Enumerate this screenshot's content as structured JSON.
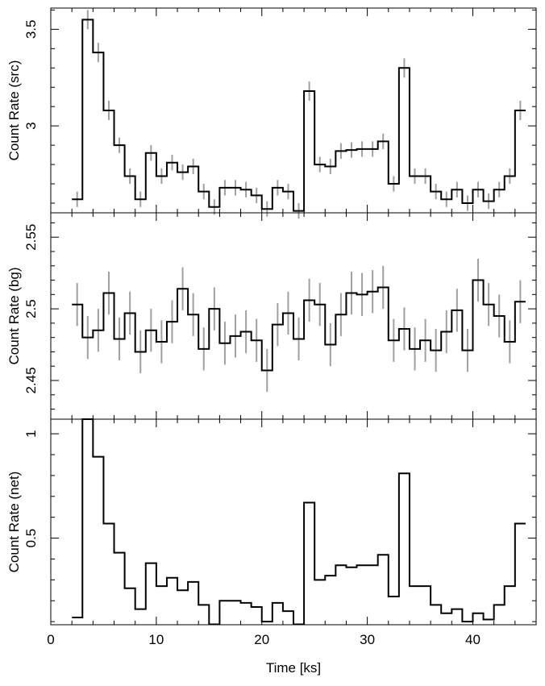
{
  "chart_data": [
    {
      "type": "line",
      "panel": "src",
      "ylabel": "Count Rate (src)",
      "xlim": [
        0,
        46
      ],
      "ylim": [
        2.55,
        3.61
      ],
      "yticks": [
        3,
        3.5
      ],
      "ytick_labels": [
        "3",
        "3.5"
      ],
      "bin_width_ks": 1,
      "x": [
        2.5,
        3.5,
        4.5,
        5.5,
        6.5,
        7.5,
        8.5,
        9.5,
        10.5,
        11.5,
        12.5,
        13.5,
        14.5,
        15.5,
        16.5,
        17.5,
        18.5,
        19.5,
        20.5,
        21.5,
        22.5,
        23.5,
        24.5,
        25.5,
        26.5,
        27.5,
        28.5,
        29.5,
        30.5,
        31.5,
        32.5,
        33.5,
        34.5,
        35.5,
        36.5,
        37.5,
        38.5,
        39.5,
        40.5,
        41.5,
        42.5,
        43.5,
        44.5
      ],
      "values": [
        2.62,
        3.55,
        3.38,
        3.08,
        2.9,
        2.74,
        2.62,
        2.86,
        2.74,
        2.81,
        2.76,
        2.79,
        2.66,
        2.58,
        2.68,
        2.68,
        2.67,
        2.64,
        2.57,
        2.68,
        2.66,
        2.56,
        3.18,
        2.8,
        2.79,
        2.87,
        2.875,
        2.88,
        2.88,
        2.92,
        2.7,
        3.3,
        2.74,
        2.74,
        2.66,
        2.62,
        2.67,
        2.6,
        2.67,
        2.61,
        2.67,
        2.74,
        3.08
      ],
      "errors": [
        0.04,
        0.05,
        0.05,
        0.05,
        0.04,
        0.04,
        0.04,
        0.04,
        0.04,
        0.04,
        0.04,
        0.04,
        0.04,
        0.04,
        0.04,
        0.04,
        0.04,
        0.04,
        0.04,
        0.04,
        0.04,
        0.04,
        0.05,
        0.04,
        0.04,
        0.04,
        0.04,
        0.04,
        0.04,
        0.04,
        0.04,
        0.05,
        0.04,
        0.04,
        0.04,
        0.04,
        0.04,
        0.04,
        0.04,
        0.04,
        0.04,
        0.04,
        0.05
      ]
    },
    {
      "type": "line",
      "panel": "bg",
      "ylabel": "Count Rate (bg)",
      "xlim": [
        0,
        46
      ],
      "ylim": [
        2.423,
        2.567
      ],
      "yticks": [
        2.45,
        2.5,
        2.55
      ],
      "ytick_labels": [
        "2.45",
        "2.5",
        "2.55"
      ],
      "bin_width_ks": 1,
      "x": [
        2.5,
        3.5,
        4.5,
        5.5,
        6.5,
        7.5,
        8.5,
        9.5,
        10.5,
        11.5,
        12.5,
        13.5,
        14.5,
        15.5,
        16.5,
        17.5,
        18.5,
        19.5,
        20.5,
        21.5,
        22.5,
        23.5,
        24.5,
        25.5,
        26.5,
        27.5,
        28.5,
        29.5,
        30.5,
        31.5,
        32.5,
        33.5,
        34.5,
        35.5,
        36.5,
        37.5,
        38.5,
        39.5,
        40.5,
        41.5,
        42.5,
        43.5,
        44.5
      ],
      "values": [
        2.503,
        2.48,
        2.485,
        2.511,
        2.479,
        2.497,
        2.47,
        2.485,
        2.477,
        2.491,
        2.514,
        2.496,
        2.472,
        2.5,
        2.476,
        2.481,
        2.484,
        2.478,
        2.457,
        2.489,
        2.497,
        2.479,
        2.506,
        2.503,
        2.475,
        2.496,
        2.511,
        2.51,
        2.512,
        2.515,
        2.478,
        2.486,
        2.472,
        2.478,
        2.471,
        2.484,
        2.499,
        2.471,
        2.52,
        2.503,
        2.495,
        2.477,
        2.505
      ],
      "errors": [
        0.015,
        0.015,
        0.015,
        0.015,
        0.015,
        0.015,
        0.015,
        0.015,
        0.015,
        0.015,
        0.015,
        0.015,
        0.015,
        0.015,
        0.015,
        0.015,
        0.015,
        0.015,
        0.015,
        0.015,
        0.015,
        0.015,
        0.015,
        0.015,
        0.015,
        0.015,
        0.015,
        0.015,
        0.015,
        0.015,
        0.015,
        0.015,
        0.015,
        0.015,
        0.015,
        0.015,
        0.015,
        0.015,
        0.015,
        0.015,
        0.015,
        0.015,
        0.015
      ]
    },
    {
      "type": "line",
      "panel": "net",
      "ylabel": "Count Rate (net)",
      "xlabel": "Time [ks]",
      "xlim": [
        0,
        46
      ],
      "ylim": [
        0.085,
        1.07
      ],
      "xticks": [
        0,
        10,
        20,
        30,
        40
      ],
      "xtick_labels": [
        "0",
        "10",
        "20",
        "30",
        "40"
      ],
      "yticks": [
        0.5,
        1
      ],
      "ytick_labels": [
        "0.5",
        "1"
      ],
      "bin_width_ks": 1,
      "x": [
        2.5,
        3.5,
        4.5,
        5.5,
        6.5,
        7.5,
        8.5,
        9.5,
        10.5,
        11.5,
        12.5,
        13.5,
        14.5,
        15.5,
        16.5,
        17.5,
        18.5,
        19.5,
        20.5,
        21.5,
        22.5,
        23.5,
        24.5,
        25.5,
        26.5,
        27.5,
        28.5,
        29.5,
        30.5,
        31.5,
        32.5,
        33.5,
        34.5,
        35.5,
        36.5,
        37.5,
        38.5,
        39.5,
        40.5,
        41.5,
        42.5,
        43.5,
        44.5
      ],
      "values": [
        0.12,
        1.07,
        0.89,
        0.57,
        0.43,
        0.26,
        0.16,
        0.38,
        0.27,
        0.31,
        0.25,
        0.29,
        0.18,
        0.087,
        0.2,
        0.2,
        0.19,
        0.17,
        0.1,
        0.19,
        0.15,
        0.087,
        0.67,
        0.3,
        0.32,
        0.37,
        0.36,
        0.37,
        0.37,
        0.42,
        0.22,
        0.81,
        0.27,
        0.27,
        0.18,
        0.14,
        0.16,
        0.1,
        0.14,
        0.11,
        0.18,
        0.27,
        0.57
      ]
    }
  ]
}
